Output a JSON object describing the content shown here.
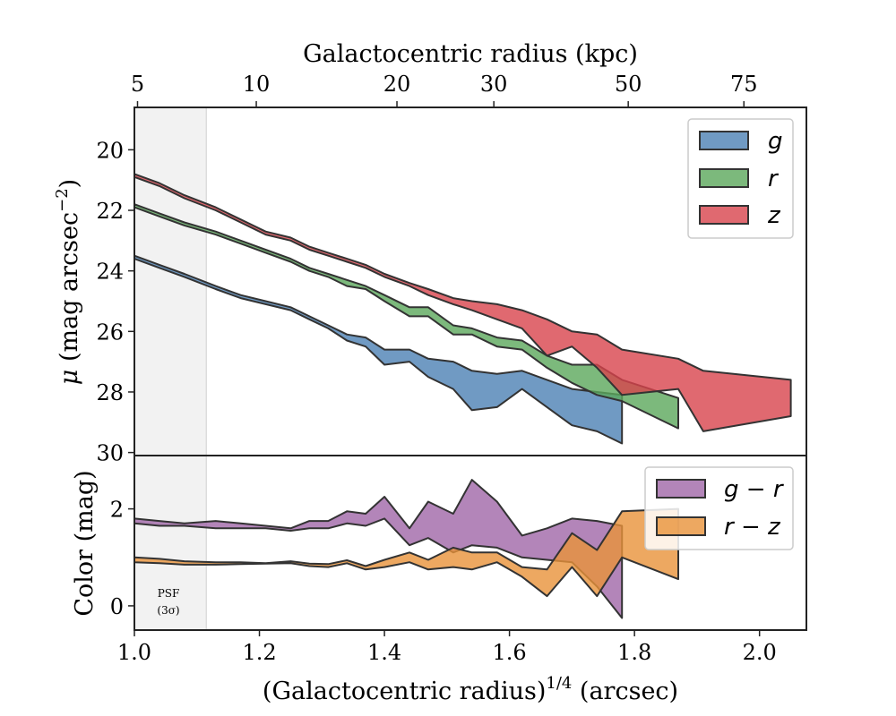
{
  "chart_data": [
    {
      "type": "area",
      "panel": "surface-brightness",
      "xlabel": "(Galactocentric radius)^1/4 (arcsec)",
      "x_top_label": "Galactocentric radius (kpc)",
      "top_ticks": [
        "5",
        "10",
        "20",
        "30",
        "50",
        "75"
      ],
      "top_tick_x": [
        1.005,
        1.195,
        1.42,
        1.575,
        1.79,
        1.975
      ],
      "ylabel": "μ (mag arcsec⁻²)",
      "xlim": [
        1.0,
        2.075
      ],
      "ylim": [
        30.1,
        18.6
      ],
      "y_inverted": true,
      "yticks": [
        "20",
        "22",
        "24",
        "26",
        "28",
        "30"
      ],
      "ytick_values": [
        20,
        22,
        24,
        26,
        28,
        30
      ],
      "legend": "top-right",
      "psf_region": {
        "x": [
          1.0,
          1.115
        ]
      },
      "series": [
        {
          "name": "g",
          "color": "#4C81B4",
          "x": [
            1.0,
            1.04,
            1.08,
            1.13,
            1.17,
            1.21,
            1.25,
            1.28,
            1.31,
            1.34,
            1.37,
            1.4,
            1.44,
            1.47,
            1.51,
            1.54,
            1.58,
            1.62,
            1.66,
            1.7,
            1.74,
            1.78
          ],
          "low": [
            23.5,
            23.8,
            24.1,
            24.5,
            24.8,
            25.0,
            25.2,
            25.5,
            25.8,
            26.1,
            26.2,
            26.6,
            26.6,
            26.9,
            27.0,
            27.3,
            27.4,
            27.3,
            27.6,
            27.9,
            28.0,
            28.1
          ],
          "high": [
            23.6,
            23.9,
            24.2,
            24.6,
            24.9,
            25.1,
            25.3,
            25.6,
            25.9,
            26.3,
            26.5,
            27.1,
            27.0,
            27.5,
            27.9,
            28.6,
            28.5,
            27.9,
            28.5,
            29.1,
            29.3,
            29.7
          ]
        },
        {
          "name": "r",
          "color": "#5BA85B",
          "x": [
            1.0,
            1.04,
            1.08,
            1.13,
            1.17,
            1.21,
            1.25,
            1.28,
            1.31,
            1.34,
            1.37,
            1.4,
            1.44,
            1.47,
            1.51,
            1.54,
            1.58,
            1.62,
            1.66,
            1.7,
            1.74,
            1.78,
            1.87
          ],
          "low": [
            21.8,
            22.1,
            22.4,
            22.7,
            23.0,
            23.3,
            23.6,
            23.9,
            24.1,
            24.3,
            24.5,
            24.8,
            25.2,
            25.2,
            25.8,
            25.9,
            26.2,
            26.3,
            26.8,
            27.1,
            27.1,
            27.6,
            28.2
          ],
          "high": [
            21.9,
            22.2,
            22.5,
            22.8,
            23.1,
            23.4,
            23.7,
            24.0,
            24.2,
            24.5,
            24.6,
            25.0,
            25.5,
            25.5,
            26.1,
            26.1,
            26.5,
            26.6,
            27.2,
            27.7,
            28.1,
            28.3,
            29.2
          ]
        },
        {
          "name": "z",
          "color": "#D8444C",
          "x": [
            1.0,
            1.04,
            1.08,
            1.13,
            1.17,
            1.21,
            1.25,
            1.28,
            1.31,
            1.34,
            1.37,
            1.4,
            1.44,
            1.47,
            1.51,
            1.54,
            1.58,
            1.62,
            1.66,
            1.7,
            1.74,
            1.78,
            1.87,
            1.91,
            2.05
          ],
          "low": [
            20.8,
            21.1,
            21.5,
            21.9,
            22.3,
            22.7,
            22.9,
            23.2,
            23.4,
            23.6,
            23.8,
            24.1,
            24.4,
            24.6,
            24.9,
            25.0,
            25.1,
            25.3,
            25.6,
            26.0,
            26.1,
            26.6,
            26.9,
            27.3,
            27.6
          ],
          "high": [
            20.9,
            21.2,
            21.6,
            22.0,
            22.4,
            22.8,
            23.0,
            23.3,
            23.5,
            23.7,
            23.9,
            24.2,
            24.5,
            24.8,
            25.1,
            25.3,
            25.6,
            25.9,
            26.8,
            26.5,
            27.2,
            28.1,
            27.9,
            29.3,
            28.8
          ]
        }
      ]
    },
    {
      "type": "area",
      "panel": "color",
      "ylabel": "Color (mag)",
      "xlim": [
        1.0,
        2.075
      ],
      "ylim": [
        -0.5,
        3.1
      ],
      "xticks": [
        "1.0",
        "1.2",
        "1.4",
        "1.6",
        "1.8",
        "2.0"
      ],
      "xtick_values": [
        1.0,
        1.2,
        1.4,
        1.6,
        1.8,
        2.0
      ],
      "yticks": [
        "0",
        "2"
      ],
      "ytick_values": [
        0,
        2
      ],
      "legend": "top-right",
      "psf_label": [
        "PSF",
        "(3σ)"
      ],
      "series": [
        {
          "name": "g − r",
          "color": "#A066A8",
          "x": [
            1.0,
            1.04,
            1.08,
            1.13,
            1.17,
            1.21,
            1.25,
            1.28,
            1.31,
            1.34,
            1.37,
            1.4,
            1.44,
            1.47,
            1.51,
            1.54,
            1.58,
            1.62,
            1.66,
            1.7,
            1.74,
            1.78
          ],
          "low": [
            1.7,
            1.65,
            1.65,
            1.6,
            1.6,
            1.6,
            1.55,
            1.6,
            1.6,
            1.7,
            1.65,
            1.8,
            1.25,
            1.4,
            1.1,
            1.25,
            1.2,
            1.0,
            0.95,
            0.9,
            0.4,
            -0.25
          ],
          "high": [
            1.8,
            1.75,
            1.7,
            1.75,
            1.7,
            1.65,
            1.6,
            1.75,
            1.75,
            1.95,
            1.9,
            2.25,
            1.6,
            2.15,
            1.9,
            2.6,
            2.15,
            1.45,
            1.6,
            1.8,
            1.75,
            1.65
          ]
        },
        {
          "name": "r − z",
          "color": "#E8923A",
          "x": [
            1.0,
            1.04,
            1.08,
            1.13,
            1.17,
            1.21,
            1.25,
            1.28,
            1.31,
            1.34,
            1.37,
            1.4,
            1.44,
            1.47,
            1.51,
            1.54,
            1.58,
            1.62,
            1.66,
            1.7,
            1.74,
            1.78,
            1.87
          ],
          "low": [
            0.9,
            0.88,
            0.85,
            0.85,
            0.86,
            0.87,
            0.88,
            0.82,
            0.8,
            0.88,
            0.75,
            0.8,
            0.9,
            0.75,
            0.8,
            0.75,
            0.9,
            0.6,
            0.2,
            0.8,
            0.2,
            1.0,
            0.55
          ],
          "high": [
            1.0,
            0.97,
            0.92,
            0.9,
            0.9,
            0.88,
            0.92,
            0.87,
            0.86,
            0.94,
            0.82,
            0.95,
            1.1,
            0.95,
            1.2,
            1.1,
            1.1,
            0.8,
            0.75,
            1.5,
            1.15,
            1.95,
            2.0
          ]
        }
      ]
    }
  ]
}
